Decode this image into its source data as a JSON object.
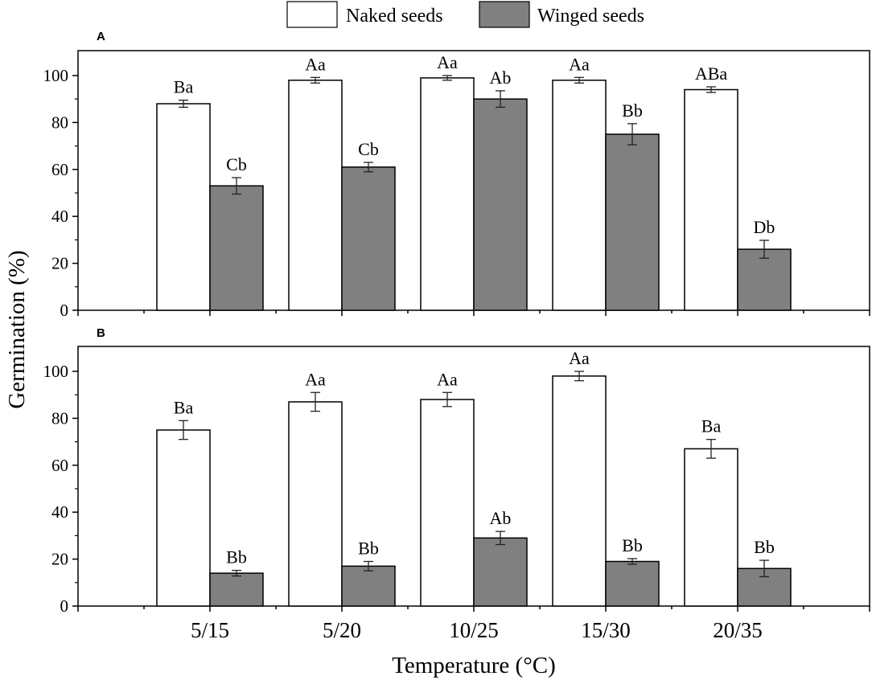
{
  "legend": {
    "naked_label": "Naked seeds",
    "winged_label": "Winged seeds",
    "naked_color": "#ffffff",
    "winged_color": "#808080"
  },
  "axes": {
    "ylabel": "Germination (%)",
    "xlabel": "Temperature (°C)"
  },
  "chart_data": [
    {
      "type": "bar",
      "panel": "A",
      "categories": [
        "5/15",
        "5/20",
        "10/25",
        "15/30",
        "20/35"
      ],
      "ylim": [
        0,
        110
      ],
      "yticks": [
        0,
        20,
        40,
        60,
        80,
        100
      ],
      "series": [
        {
          "name": "Naked seeds",
          "color": "#ffffff",
          "values": [
            88,
            98,
            99,
            98,
            94
          ],
          "errors": [
            1.5,
            1.2,
            1,
            1.2,
            1.2
          ],
          "labels": [
            "Ba",
            "Aa",
            "Aa",
            "Aa",
            "ABa"
          ]
        },
        {
          "name": "Winged seeds",
          "color": "#808080",
          "values": [
            53,
            61,
            90,
            75,
            26
          ],
          "errors": [
            3.5,
            2,
            3.5,
            4.5,
            3.8
          ],
          "labels": [
            "Cb",
            "Cb",
            "Ab",
            "Bb",
            "Db"
          ]
        }
      ]
    },
    {
      "type": "bar",
      "panel": "B",
      "categories": [
        "5/15",
        "5/20",
        "10/25",
        "15/30",
        "20/35"
      ],
      "ylim": [
        0,
        110
      ],
      "yticks": [
        0,
        20,
        40,
        60,
        80,
        100
      ],
      "series": [
        {
          "name": "Naked seeds",
          "color": "#ffffff",
          "values": [
            75,
            87,
            88,
            98,
            67
          ],
          "errors": [
            4,
            4,
            3,
            2,
            4
          ],
          "labels": [
            "Ba",
            "Aa",
            "Aa",
            "Aa",
            "Ba"
          ]
        },
        {
          "name": "Winged seeds",
          "color": "#808080",
          "values": [
            14,
            17,
            29,
            19,
            16
          ],
          "errors": [
            1.2,
            2,
            2.8,
            1.2,
            3.5
          ],
          "labels": [
            "Bb",
            "Bb",
            "Ab",
            "Bb",
            "Bb"
          ]
        }
      ]
    }
  ]
}
